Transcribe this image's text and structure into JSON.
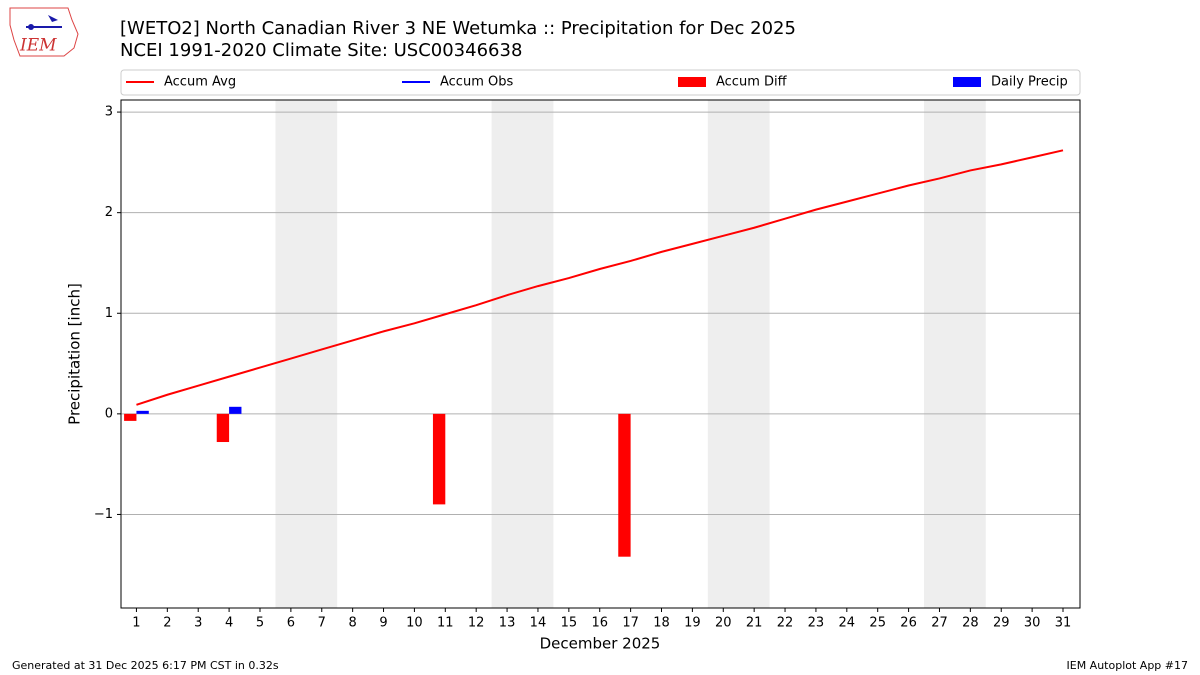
{
  "chart_data": {
    "type": "bar",
    "title": "[WETO2] North Canadian River 3 NE Wetumka :: Precipitation for Dec 2025",
    "subtitle": "NCEI 1991-2020 Climate Site: USC00346638",
    "logo_text": "IEM",
    "xlabel": "December 2025",
    "ylabel": "Precipitation [inch]",
    "footer_left": "Generated at 31 Dec 2025 6:17 PM CST in 0.32s",
    "footer_right": "IEM Autoplot App #17",
    "x": [
      1,
      2,
      3,
      4,
      5,
      6,
      7,
      8,
      9,
      10,
      11,
      12,
      13,
      14,
      15,
      16,
      17,
      18,
      19,
      20,
      21,
      22,
      23,
      24,
      25,
      26,
      27,
      28,
      29,
      30,
      31
    ],
    "xlim": [
      0.5,
      31.55
    ],
    "xticks": [
      1,
      2,
      3,
      4,
      5,
      6,
      7,
      8,
      9,
      10,
      11,
      12,
      13,
      14,
      15,
      16,
      17,
      18,
      19,
      20,
      21,
      22,
      23,
      24,
      25,
      26,
      27,
      28,
      29,
      30,
      31
    ],
    "ylim": [
      -1.93,
      3.12
    ],
    "yticks": [
      {
        "value": -1,
        "label": "−1"
      },
      0,
      1,
      2,
      3
    ],
    "grid": true,
    "weekend_spans": [
      [
        5.5,
        7.5
      ],
      [
        12.5,
        14.5
      ],
      [
        19.5,
        21.5
      ],
      [
        26.5,
        28.5
      ]
    ],
    "series": [
      {
        "name": "Accum Avg",
        "type": "line",
        "color": "#ff0000",
        "values": [
          0.09,
          0.19,
          0.28,
          0.37,
          0.46,
          0.55,
          0.64,
          0.73,
          0.82,
          0.9,
          0.99,
          1.08,
          1.18,
          1.27,
          1.35,
          1.44,
          1.52,
          1.61,
          1.69,
          1.77,
          1.85,
          1.94,
          2.03,
          2.11,
          2.19,
          2.27,
          2.34,
          2.42,
          2.48,
          2.55,
          2.62
        ]
      },
      {
        "name": "Accum Obs",
        "type": "line",
        "color": "#0000ff",
        "values": [
          null,
          null,
          null,
          null,
          null,
          null,
          null,
          null,
          null,
          null,
          null,
          null,
          null,
          null,
          null,
          null,
          null,
          null,
          null,
          null,
          null,
          null,
          null,
          null,
          null,
          null,
          null,
          null,
          null,
          null,
          null
        ]
      },
      {
        "name": "Accum Diff",
        "type": "bar",
        "color": "#ff0000",
        "values": [
          -0.07,
          null,
          null,
          -0.28,
          null,
          null,
          null,
          null,
          null,
          null,
          -0.9,
          null,
          null,
          null,
          null,
          null,
          -1.42,
          null,
          null,
          null,
          null,
          null,
          null,
          null,
          null,
          null,
          null,
          null,
          null,
          null,
          null
        ]
      },
      {
        "name": "Daily Precip",
        "type": "bar",
        "color": "#0000ff",
        "values": [
          0.03,
          null,
          null,
          0.07,
          null,
          null,
          null,
          null,
          null,
          null,
          null,
          null,
          null,
          null,
          null,
          null,
          null,
          null,
          null,
          null,
          null,
          null,
          null,
          null,
          null,
          null,
          null,
          null,
          null,
          null,
          null
        ]
      }
    ]
  }
}
